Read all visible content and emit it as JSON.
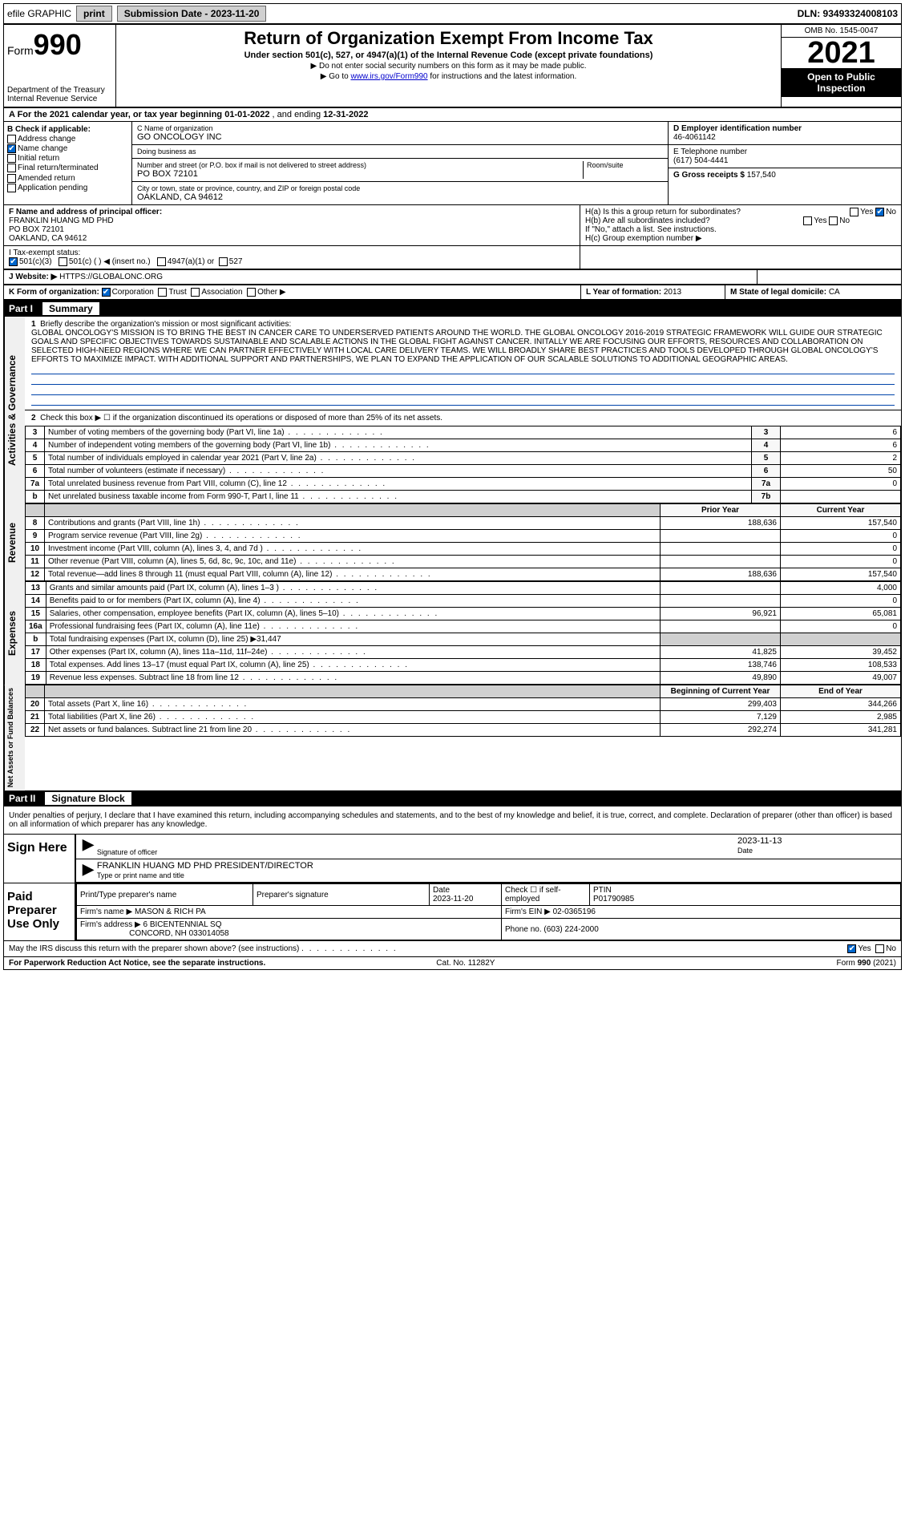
{
  "top": {
    "efile": "efile GRAPHIC",
    "print": "print",
    "sub_date_label": "Submission Date - 2023-11-20",
    "dln": "DLN: 93493324008103"
  },
  "header": {
    "form_prefix": "Form",
    "form_num": "990",
    "dept": "Department of the Treasury\nInternal Revenue Service",
    "title": "Return of Organization Exempt From Income Tax",
    "sub": "Under section 501(c), 527, or 4947(a)(1) of the Internal Revenue Code (except private foundations)",
    "sub2a": "▶ Do not enter social security numbers on this form as it may be made public.",
    "sub2b_pre": "▶ Go to ",
    "sub2b_link": "www.irs.gov/Form990",
    "sub2b_post": " for instructions and the latest information.",
    "omb": "OMB No. 1545-0047",
    "year": "2021",
    "open": "Open to Public Inspection"
  },
  "lineA": {
    "text_pre": "A  For the 2021 calendar year, or tax year beginning ",
    "begin": "01-01-2022",
    "mid": "  , and ending ",
    "end": "12-31-2022"
  },
  "colB": {
    "title": "B Check if applicable:",
    "opts": [
      "Address change",
      "Name change",
      "Initial return",
      "Final return/terminated",
      "Amended return",
      "Application pending"
    ],
    "checked_idx": 1
  },
  "colC": {
    "name_label": "C Name of organization",
    "name": "GO ONCOLOGY INC",
    "dba_label": "Doing business as",
    "dba": "",
    "addr_label": "Number and street (or P.O. box if mail is not delivered to street address)",
    "room_label": "Room/suite",
    "addr": "PO BOX 72101",
    "city_label": "City or town, state or province, country, and ZIP or foreign postal code",
    "city": "OAKLAND, CA  94612"
  },
  "colD": {
    "ein_label": "D Employer identification number",
    "ein": "46-4061142",
    "tel_label": "E Telephone number",
    "tel": "(617) 504-4441",
    "gross_label": "G Gross receipts $",
    "gross": "157,540"
  },
  "rowF": {
    "label": "F  Name and address of principal officer:",
    "name": "FRANKLIN HUANG MD PHD",
    "addr1": "PO BOX 72101",
    "addr2": "OAKLAND, CA  94612"
  },
  "rowH": {
    "ha": "H(a)  Is this a group return for subordinates?",
    "hb": "H(b)  Are all subordinates included?",
    "hnote": "If \"No,\" attach a list. See instructions.",
    "hc": "H(c)  Group exemption number ▶",
    "yes": "Yes",
    "no": "No"
  },
  "rowI": {
    "label": "I    Tax-exempt status:",
    "o1": "501(c)(3)",
    "o2": "501(c) (  ) ◀ (insert no.)",
    "o3": "4947(a)(1) or",
    "o4": "527"
  },
  "rowJ": {
    "label": "J   Website: ▶",
    "url": "HTTPS://GLOBALONC.ORG"
  },
  "rowK": {
    "label": "K Form of organization:",
    "o1": "Corporation",
    "o2": "Trust",
    "o3": "Association",
    "o4": "Other ▶"
  },
  "rowL": {
    "label": "L Year of formation:",
    "val": "2013"
  },
  "rowM": {
    "label": "M State of legal domicile:",
    "val": "CA"
  },
  "part1": {
    "header_num": "Part I",
    "header_title": "Summary",
    "side1": "Activities & Governance",
    "side2": "Revenue",
    "side3": "Expenses",
    "side4": "Net Assets or Fund Balances",
    "q1": "Briefly describe the organization's mission or most significant activities:",
    "mission": "GLOBAL ONCOLOGY'S MISSION IS TO BRING THE BEST IN CANCER CARE TO UNDERSERVED PATIENTS AROUND THE WORLD. THE GLOBAL ONCOLOGY 2016-2019 STRATEGIC FRAMEWORK WILL GUIDE OUR STRATEGIC GOALS AND SPECIFIC OBJECTIVES TOWARDS SUSTAINABLE AND SCALABLE ACTIONS IN THE GLOBAL FIGHT AGAINST CANCER. INITALLY WE ARE FOCUSING OUR EFFORTS, RESOURCES AND COLLABORATION ON SELECTED HIGH-NEED REGIONS WHERE WE CAN PARTNER EFFECTIVELY WITH LOCAL CARE DELIVERY TEAMS. WE WILL BROADLY SHARE BEST PRACTICES AND TOOLS DEVELOPED THROUGH GLOBAL ONCOLOGY'S EFFORTS TO MAXIMIZE IMPACT. WITH ADDITIONAL SUPPORT AND PARTNERSHIPS, WE PLAN TO EXPAND THE APPLICATION OF OUR SCALABLE SOLUTIONS TO ADDITIONAL GEOGRAPHIC AREAS.",
    "q2": "Check this box ▶ ☐ if the organization discontinued its operations or disposed of more than 25% of its net assets.",
    "rows_gov": [
      {
        "n": "3",
        "d": "Number of voting members of the governing body (Part VI, line 1a)",
        "ln": "3",
        "v": "6"
      },
      {
        "n": "4",
        "d": "Number of independent voting members of the governing body (Part VI, line 1b)",
        "ln": "4",
        "v": "6"
      },
      {
        "n": "5",
        "d": "Total number of individuals employed in calendar year 2021 (Part V, line 2a)",
        "ln": "5",
        "v": "2"
      },
      {
        "n": "6",
        "d": "Total number of volunteers (estimate if necessary)",
        "ln": "6",
        "v": "50"
      },
      {
        "n": "7a",
        "d": "Total unrelated business revenue from Part VIII, column (C), line 12",
        "ln": "7a",
        "v": "0"
      },
      {
        "n": "b",
        "d": "Net unrelated business taxable income from Form 990-T, Part I, line 11",
        "ln": "7b",
        "v": ""
      }
    ],
    "col_prior": "Prior Year",
    "col_current": "Current Year",
    "rows_rev": [
      {
        "n": "8",
        "d": "Contributions and grants (Part VIII, line 1h)",
        "p": "188,636",
        "c": "157,540"
      },
      {
        "n": "9",
        "d": "Program service revenue (Part VIII, line 2g)",
        "p": "",
        "c": "0"
      },
      {
        "n": "10",
        "d": "Investment income (Part VIII, column (A), lines 3, 4, and 7d )",
        "p": "",
        "c": "0"
      },
      {
        "n": "11",
        "d": "Other revenue (Part VIII, column (A), lines 5, 6d, 8c, 9c, 10c, and 11e)",
        "p": "",
        "c": "0"
      },
      {
        "n": "12",
        "d": "Total revenue—add lines 8 through 11 (must equal Part VIII, column (A), line 12)",
        "p": "188,636",
        "c": "157,540"
      }
    ],
    "rows_exp": [
      {
        "n": "13",
        "d": "Grants and similar amounts paid (Part IX, column (A), lines 1–3 )",
        "p": "",
        "c": "4,000"
      },
      {
        "n": "14",
        "d": "Benefits paid to or for members (Part IX, column (A), line 4)",
        "p": "",
        "c": "0"
      },
      {
        "n": "15",
        "d": "Salaries, other compensation, employee benefits (Part IX, column (A), lines 5–10)",
        "p": "96,921",
        "c": "65,081"
      },
      {
        "n": "16a",
        "d": "Professional fundraising fees (Part IX, column (A), line 11e)",
        "p": "",
        "c": "0"
      },
      {
        "n": "b",
        "d": "Total fundraising expenses (Part IX, column (D), line 25) ▶31,447",
        "p": "grey",
        "c": "grey"
      },
      {
        "n": "17",
        "d": "Other expenses (Part IX, column (A), lines 11a–11d, 11f–24e)",
        "p": "41,825",
        "c": "39,452"
      },
      {
        "n": "18",
        "d": "Total expenses. Add lines 13–17 (must equal Part IX, column (A), line 25)",
        "p": "138,746",
        "c": "108,533"
      },
      {
        "n": "19",
        "d": "Revenue less expenses. Subtract line 18 from line 12",
        "p": "49,890",
        "c": "49,007"
      }
    ],
    "col_begin": "Beginning of Current Year",
    "col_end": "End of Year",
    "rows_net": [
      {
        "n": "20",
        "d": "Total assets (Part X, line 16)",
        "p": "299,403",
        "c": "344,266"
      },
      {
        "n": "21",
        "d": "Total liabilities (Part X, line 26)",
        "p": "7,129",
        "c": "2,985"
      },
      {
        "n": "22",
        "d": "Net assets or fund balances. Subtract line 21 from line 20",
        "p": "292,274",
        "c": "341,281"
      }
    ]
  },
  "part2": {
    "header_num": "Part II",
    "header_title": "Signature Block",
    "penalty": "Under penalties of perjury, I declare that I have examined this return, including accompanying schedules and statements, and to the best of my knowledge and belief, it is true, correct, and complete. Declaration of preparer (other than officer) is based on all information of which preparer has any knowledge.",
    "sign_here": "Sign Here",
    "sig_officer": "Signature of officer",
    "sig_date": "2023-11-13",
    "date_lab": "Date",
    "officer_name": "FRANKLIN HUANG MD PHD  PRESIDENT/DIRECTOR",
    "type_name": "Type or print name and title",
    "paid": "Paid Preparer Use Only",
    "prep_name_lab": "Print/Type preparer's name",
    "prep_sig_lab": "Preparer's signature",
    "prep_date_lab": "Date",
    "prep_date": "2023-11-20",
    "self_emp": "Check ☐ if self-employed",
    "ptin_lab": "PTIN",
    "ptin": "P01790985",
    "firm_name_lab": "Firm's name    ▶",
    "firm_name": "MASON & RICH PA",
    "firm_ein_lab": "Firm's EIN ▶",
    "firm_ein": "02-0365196",
    "firm_addr_lab": "Firm's address ▶",
    "firm_addr1": "6 BICENTENNIAL SQ",
    "firm_addr2": "CONCORD, NH  033014058",
    "phone_lab": "Phone no.",
    "phone": "(603) 224-2000",
    "discuss": "May the IRS discuss this return with the preparer shown above? (see instructions)",
    "yes": "Yes",
    "no": "No"
  },
  "footer": {
    "left": "For Paperwork Reduction Act Notice, see the separate instructions.",
    "mid": "Cat. No. 11282Y",
    "right": "Form 990 (2021)"
  },
  "colors": {
    "link": "#0000cc",
    "checked": "#0066cc",
    "rule": "#0044aa"
  }
}
